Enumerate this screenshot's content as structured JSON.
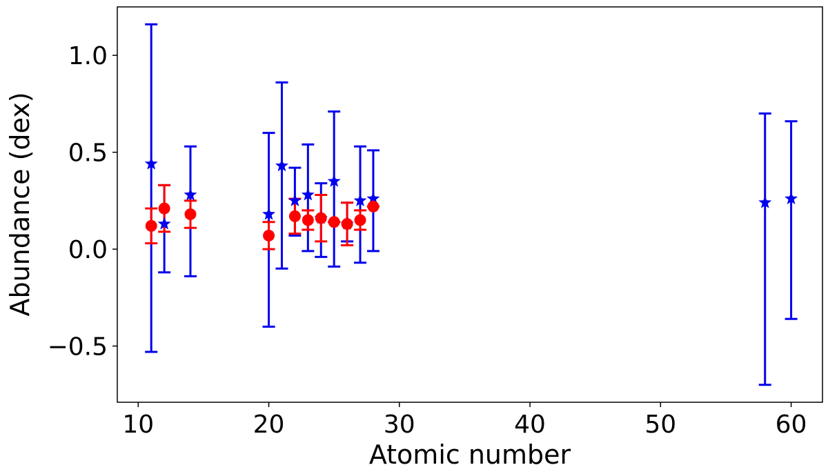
{
  "chart_data": {
    "type": "scatter",
    "title": "",
    "xlabel": "Atomic number",
    "ylabel": "Abundance (dex)",
    "xlim": [
      8.4,
      62.4
    ],
    "ylim": [
      -0.79,
      1.25
    ],
    "xticks": [
      10,
      20,
      30,
      40,
      50,
      60
    ],
    "xtick_labels": [
      "10",
      "20",
      "30",
      "40",
      "50",
      "60"
    ],
    "yticks": [
      1.0,
      0.5,
      0.0,
      -0.5
    ],
    "ytick_labels": [
      "1.0",
      "0.5",
      "0.0",
      "−0.5"
    ],
    "grid": false,
    "legend": "none",
    "series": [
      {
        "marker": "star",
        "color": "#0000ee",
        "points": [
          {
            "x": 11,
            "y": 0.44,
            "ylo": -0.53,
            "yhi": 1.16
          },
          {
            "x": 12,
            "y": 0.13,
            "ylo": -0.12,
            "yhi": 0.33
          },
          {
            "x": 14,
            "y": 0.28,
            "ylo": -0.14,
            "yhi": 0.53
          },
          {
            "x": 20,
            "y": 0.18,
            "ylo": -0.4,
            "yhi": 0.6
          },
          {
            "x": 21,
            "y": 0.43,
            "ylo": -0.1,
            "yhi": 0.86
          },
          {
            "x": 22,
            "y": 0.25,
            "ylo": 0.07,
            "yhi": 0.42
          },
          {
            "x": 23,
            "y": 0.28,
            "ylo": -0.01,
            "yhi": 0.54
          },
          {
            "x": 24,
            "y": 0.16,
            "ylo": -0.04,
            "yhi": 0.34
          },
          {
            "x": 25,
            "y": 0.35,
            "ylo": -0.09,
            "yhi": 0.71
          },
          {
            "x": 26,
            "y": 0.13,
            "ylo": 0.04,
            "yhi": 0.24
          },
          {
            "x": 27,
            "y": 0.25,
            "ylo": -0.07,
            "yhi": 0.53
          },
          {
            "x": 28,
            "y": 0.26,
            "ylo": -0.01,
            "yhi": 0.51
          },
          {
            "x": 58,
            "y": 0.24,
            "ylo": -0.7,
            "yhi": 0.7
          },
          {
            "x": 60,
            "y": 0.26,
            "ylo": -0.36,
            "yhi": 0.66
          }
        ]
      },
      {
        "marker": "circle",
        "color": "#ff0000",
        "points": [
          {
            "x": 11,
            "y": 0.12,
            "ylo": 0.03,
            "yhi": 0.21
          },
          {
            "x": 12,
            "y": 0.21,
            "ylo": 0.09,
            "yhi": 0.33
          },
          {
            "x": 14,
            "y": 0.18,
            "ylo": 0.11,
            "yhi": 0.25
          },
          {
            "x": 20,
            "y": 0.07,
            "ylo": 0.0,
            "yhi": 0.14
          },
          {
            "x": 22,
            "y": 0.17,
            "ylo": 0.08,
            "yhi": 0.26
          },
          {
            "x": 23,
            "y": 0.15,
            "ylo": 0.1,
            "yhi": 0.2
          },
          {
            "x": 24,
            "y": 0.16,
            "ylo": 0.04,
            "yhi": 0.28
          },
          {
            "x": 25,
            "y": 0.14,
            "ylo": 0.14,
            "yhi": 0.14
          },
          {
            "x": 26,
            "y": 0.13,
            "ylo": 0.02,
            "yhi": 0.24
          },
          {
            "x": 27,
            "y": 0.15,
            "ylo": 0.1,
            "yhi": 0.2
          },
          {
            "x": 28,
            "y": 0.22,
            "ylo": 0.22,
            "yhi": 0.22
          }
        ]
      }
    ]
  }
}
